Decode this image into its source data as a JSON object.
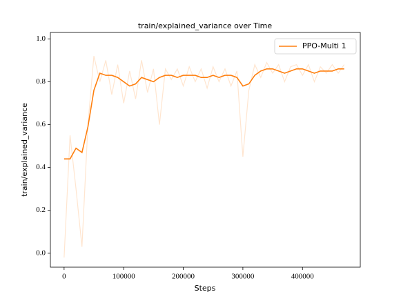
{
  "chart_data": {
    "type": "line",
    "title": "train/explained_variance over Time",
    "xlabel": "Steps",
    "ylabel": "train/explained_variance",
    "x": [
      0,
      10000,
      20000,
      30000,
      40000,
      50000,
      60000,
      70000,
      80000,
      90000,
      100000,
      110000,
      120000,
      130000,
      140000,
      150000,
      160000,
      170000,
      180000,
      190000,
      200000,
      210000,
      220000,
      230000,
      240000,
      250000,
      260000,
      270000,
      280000,
      290000,
      300000,
      310000,
      320000,
      330000,
      340000,
      350000,
      360000,
      370000,
      380000,
      390000,
      400000,
      410000,
      420000,
      430000,
      440000,
      450000,
      460000,
      470000
    ],
    "series": [
      {
        "name": "PPO-Multi 1",
        "color": "#ff7f0e",
        "values": [
          0.44,
          0.44,
          0.49,
          0.47,
          0.59,
          0.76,
          0.84,
          0.83,
          0.83,
          0.82,
          0.8,
          0.78,
          0.79,
          0.82,
          0.81,
          0.8,
          0.82,
          0.83,
          0.83,
          0.82,
          0.83,
          0.83,
          0.83,
          0.82,
          0.82,
          0.83,
          0.82,
          0.83,
          0.83,
          0.82,
          0.78,
          0.79,
          0.83,
          0.85,
          0.86,
          0.86,
          0.85,
          0.84,
          0.85,
          0.86,
          0.86,
          0.85,
          0.84,
          0.85,
          0.85,
          0.85,
          0.86,
          0.86
        ],
        "raw_values": [
          -0.02,
          0.55,
          0.3,
          0.03,
          0.6,
          0.92,
          0.8,
          0.9,
          0.74,
          0.88,
          0.7,
          0.85,
          0.72,
          0.9,
          0.75,
          0.86,
          0.6,
          0.86,
          0.81,
          0.86,
          0.78,
          0.87,
          0.8,
          0.86,
          0.77,
          0.87,
          0.8,
          0.86,
          0.78,
          0.85,
          0.45,
          0.76,
          0.88,
          0.82,
          0.89,
          0.84,
          0.88,
          0.8,
          0.87,
          0.88,
          0.83,
          0.88,
          0.8,
          0.87,
          0.84,
          0.88,
          0.84,
          0.88
        ]
      }
    ],
    "xlim": [
      -23000,
      497000
    ],
    "ylim": [
      -0.065,
      1.03
    ],
    "xticks": [
      0,
      100000,
      200000,
      300000,
      400000
    ],
    "yticks": [
      {
        "value": 0,
        "label": "0.0"
      },
      0.2,
      0.4,
      0.6,
      0.8,
      {
        "value": 1,
        "label": "1.0"
      }
    ],
    "legend": "upper right"
  }
}
